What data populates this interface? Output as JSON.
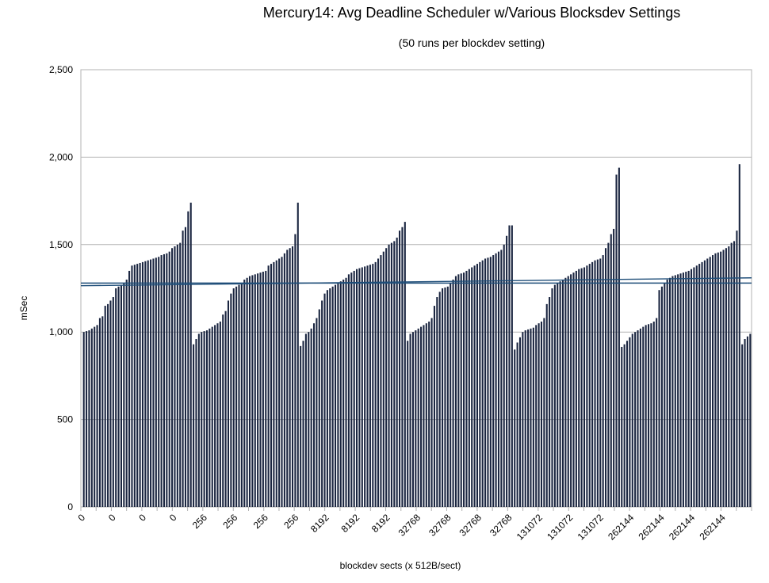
{
  "chart_data": {
    "type": "bar",
    "title": "Mercury14: Avg Deadline Scheduler w/Various Blocksdev Settings",
    "subtitle": "(50 runs per blockdev setting)",
    "ylabel": "mSec",
    "xlabel": "blockdev sects (x 512B/sect)",
    "ylim": [
      0,
      2500
    ],
    "yticks": [
      "0",
      "500",
      "1,000",
      "1,500",
      "2,000",
      "2,500"
    ],
    "ytick_values": [
      0,
      500,
      1000,
      1500,
      2000,
      2500
    ],
    "x_tick_labels": [
      "0",
      "0",
      "0",
      "0",
      "256",
      "256",
      "256",
      "256",
      "8192",
      "8192",
      "8192",
      "32768",
      "32768",
      "32768",
      "32768",
      "131072",
      "131072",
      "131072",
      "262144",
      "262144",
      "262144",
      "262144"
    ],
    "grid": true,
    "bar_color": "#1a2540",
    "trend_color": "#1f4e79",
    "groups": [
      {
        "setting": "0",
        "values": [
          1000,
          1005,
          1010,
          1020,
          1030,
          1040,
          1080,
          1090,
          1150,
          1160,
          1180,
          1200,
          1250,
          1260,
          1270,
          1280,
          1300,
          1350,
          1380,
          1385,
          1390,
          1395,
          1400,
          1405,
          1410,
          1415,
          1420,
          1425,
          1430,
          1440,
          1445,
          1450,
          1460,
          1480,
          1490,
          1500,
          1510,
          1580,
          1600,
          1690,
          1740
        ]
      },
      {
        "setting": "256",
        "values": [
          930,
          960,
          990,
          1000,
          1005,
          1010,
          1020,
          1030,
          1040,
          1050,
          1060,
          1100,
          1120,
          1180,
          1220,
          1250,
          1260,
          1270,
          1280,
          1300,
          1310,
          1320,
          1325,
          1330,
          1335,
          1340,
          1345,
          1350,
          1380,
          1390,
          1400,
          1410,
          1420,
          1430,
          1450,
          1470,
          1480,
          1490,
          1560,
          1740
        ]
      },
      {
        "setting": "8192",
        "values": [
          920,
          950,
          990,
          1000,
          1020,
          1050,
          1080,
          1130,
          1180,
          1220,
          1240,
          1250,
          1260,
          1270,
          1280,
          1290,
          1300,
          1310,
          1330,
          1340,
          1350,
          1360,
          1365,
          1370,
          1375,
          1380,
          1385,
          1390,
          1400,
          1420,
          1440,
          1460,
          1480,
          1500,
          1510,
          1520,
          1540,
          1580,
          1600,
          1630
        ]
      },
      {
        "setting": "32768",
        "values": [
          950,
          990,
          1000,
          1010,
          1020,
          1030,
          1040,
          1050,
          1060,
          1080,
          1150,
          1200,
          1230,
          1250,
          1255,
          1260,
          1280,
          1300,
          1320,
          1330,
          1335,
          1340,
          1350,
          1360,
          1370,
          1380,
          1390,
          1400,
          1410,
          1420,
          1425,
          1430,
          1440,
          1450,
          1460,
          1470,
          1500,
          1550,
          1610,
          1610
        ]
      },
      {
        "setting": "131072",
        "values": [
          900,
          940,
          970,
          1000,
          1010,
          1015,
          1020,
          1025,
          1040,
          1050,
          1060,
          1080,
          1160,
          1200,
          1250,
          1270,
          1280,
          1290,
          1300,
          1310,
          1320,
          1330,
          1340,
          1350,
          1360,
          1365,
          1370,
          1380,
          1390,
          1400,
          1410,
          1415,
          1420,
          1440,
          1480,
          1510,
          1560,
          1590,
          1900,
          1940
        ]
      },
      {
        "setting": "262144",
        "values": [
          915,
          930,
          950,
          970,
          990,
          1000,
          1010,
          1020,
          1030,
          1040,
          1045,
          1050,
          1060,
          1080,
          1240,
          1260,
          1280,
          1300,
          1310,
          1320,
          1325,
          1330,
          1335,
          1340,
          1345,
          1350,
          1360,
          1370,
          1380,
          1390,
          1400,
          1410,
          1420,
          1430,
          1440,
          1450,
          1455,
          1460,
          1470,
          1480,
          1490,
          1510,
          1520,
          1580,
          1960,
          930,
          960,
          975,
          990
        ]
      }
    ],
    "trend_lines": [
      {
        "start": 1265,
        "end": 1310
      },
      {
        "start": 1280,
        "end": 1280
      }
    ]
  }
}
